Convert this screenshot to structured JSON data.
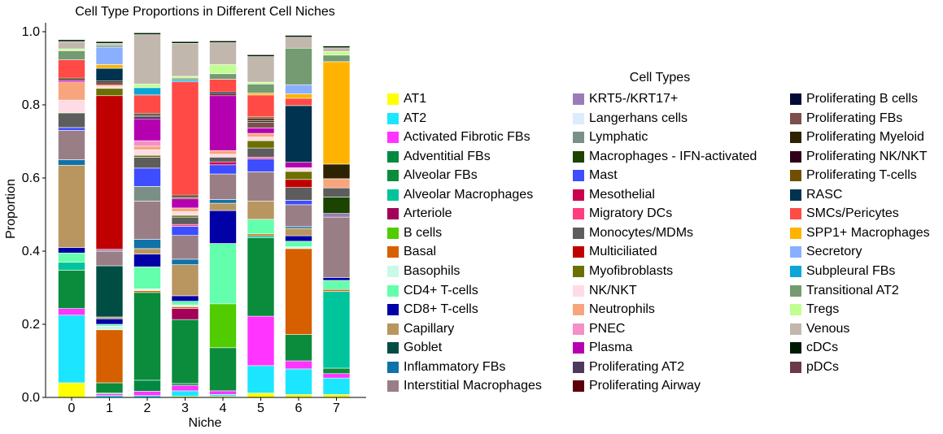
{
  "chart_data": {
    "type": "bar",
    "stacked": true,
    "title": "Cell Type Proportions in Different Cell Niches",
    "xlabel": "Niche",
    "ylabel": "Proportion",
    "ylim": [
      0,
      1.02
    ],
    "yticks": [
      "0.0",
      "0.2",
      "0.4",
      "0.6",
      "0.8",
      "1.0"
    ],
    "categories": [
      "0",
      "1",
      "2",
      "3",
      "4",
      "5",
      "6",
      "7"
    ],
    "legend_title": "Cell Types",
    "legend_placement": "right",
    "grid": false,
    "series": [
      {
        "name": "AT1",
        "color": "#ffff00",
        "values": [
          0.04,
          0.0,
          0.0,
          0.003,
          0.003,
          0.012,
          0.008,
          0.008
        ]
      },
      {
        "name": "AT2",
        "color": "#1ce6ff",
        "values": [
          0.185,
          0.005,
          0.005,
          0.015,
          0.005,
          0.075,
          0.07,
          0.045
        ]
      },
      {
        "name": "Activated Fibrotic FBs",
        "color": "#ff34ff",
        "values": [
          0.018,
          0.005,
          0.012,
          0.015,
          0.01,
          0.135,
          0.022,
          0.012
        ]
      },
      {
        "name": "Adventitial FBs",
        "color": "#008941",
        "values": [
          0.0,
          0.002,
          0.03,
          0.005,
          0.0,
          0.0,
          0.0,
          0.0
        ]
      },
      {
        "name": "Alveolar FBs",
        "color": "#0a8c3c",
        "values": [
          0.105,
          0.028,
          0.24,
          0.175,
          0.118,
          0.215,
          0.072,
          0.015
        ]
      },
      {
        "name": "Alveolar Macrophages",
        "color": "#00c49b",
        "values": [
          0.022,
          0.0,
          0.0,
          0.0,
          0.0,
          0.005,
          0.0,
          0.21
        ]
      },
      {
        "name": "Arteriole",
        "color": "#a30059",
        "values": [
          0.0,
          0.0,
          0.0,
          0.03,
          0.0,
          0.0,
          0.0,
          0.0
        ]
      },
      {
        "name": "B cells",
        "color": "#50cc00",
        "values": [
          0.0,
          0.0,
          0.0,
          0.0,
          0.12,
          0.0,
          0.0,
          0.0
        ]
      },
      {
        "name": "Basal",
        "color": "#d66000",
        "values": [
          0.0,
          0.145,
          0.005,
          0.005,
          0.0,
          0.005,
          0.235,
          0.005
        ]
      },
      {
        "name": "Basophils",
        "color": "#c8fae6",
        "values": [
          0.0,
          0.01,
          0.005,
          0.005,
          0.0,
          0.0,
          0.005,
          0.0
        ]
      },
      {
        "name": "CD4+ T-cells",
        "color": "#63ffac",
        "values": [
          0.025,
          0.005,
          0.06,
          0.01,
          0.165,
          0.04,
          0.015,
          0.025
        ]
      },
      {
        "name": "CD8+ T-cells",
        "color": "#0000a6",
        "values": [
          0.015,
          0.015,
          0.035,
          0.015,
          0.09,
          0.0,
          0.015,
          0.008
        ]
      },
      {
        "name": "Capillary",
        "color": "#b99660",
        "values": [
          0.225,
          0.005,
          0.015,
          0.085,
          0.02,
          0.05,
          0.02,
          0.0
        ]
      },
      {
        "name": "Goblet",
        "color": "#004d43",
        "values": [
          0.0,
          0.14,
          0.0,
          0.0,
          0.0,
          0.0,
          0.0,
          0.0
        ]
      },
      {
        "name": "Inflammatory FBs",
        "color": "#0f72a8",
        "values": [
          0.015,
          0.0,
          0.025,
          0.015,
          0.01,
          0.0,
          0.005,
          0.0
        ]
      },
      {
        "name": "Interstitial Macrophages",
        "color": "#9a7e85",
        "values": [
          0.08,
          0.04,
          0.105,
          0.065,
          0.07,
          0.08,
          0.06,
          0.165
        ]
      },
      {
        "name": "KRT5-/KRT17+",
        "color": "#9c7cb8",
        "values": [
          0.0,
          0.005,
          0.0,
          0.0,
          0.0,
          0.0,
          0.0,
          0.01
        ]
      },
      {
        "name": "Langerhans cells",
        "color": "#dcecfc",
        "values": [
          0.0,
          0.0,
          0.0,
          0.0,
          0.0,
          0.0,
          0.0,
          0.0
        ]
      },
      {
        "name": "Lymphatic",
        "color": "#7a9087",
        "values": [
          0.0,
          0.0,
          0.04,
          0.0,
          0.0,
          0.0,
          0.0,
          0.0
        ]
      },
      {
        "name": "Macrophages - IFN-activated",
        "color": "#1b4400",
        "values": [
          0.0,
          0.0,
          0.0,
          0.0,
          0.0,
          0.0,
          0.0,
          0.045
        ]
      },
      {
        "name": "Mast",
        "color": "#3d4dff",
        "values": [
          0.008,
          0.0,
          0.05,
          0.025,
          0.025,
          0.035,
          0.012,
          0.0
        ]
      },
      {
        "name": "Mesothelial",
        "color": "#ca0050",
        "values": [
          0.0,
          0.0,
          0.0,
          0.0,
          0.008,
          0.0,
          0.0,
          0.0
        ]
      },
      {
        "name": "Migratory DCs",
        "color": "#ff3d7f",
        "values": [
          0.0,
          0.0,
          0.0,
          0.005,
          0.0,
          0.005,
          0.0,
          0.0
        ]
      },
      {
        "name": "Monocytes/MDMs",
        "color": "#5d5d5d",
        "values": [
          0.04,
          0.0,
          0.03,
          0.02,
          0.013,
          0.025,
          0.035,
          0.025
        ]
      },
      {
        "name": "Multiciliated",
        "color": "#c00000",
        "values": [
          0.0,
          0.42,
          0.0,
          0.0,
          0.0,
          0.0,
          0.022,
          0.0
        ]
      },
      {
        "name": "Myofibroblasts",
        "color": "#6b7000",
        "values": [
          0.0,
          0.02,
          0.005,
          0.005,
          0.0,
          0.02,
          0.022,
          0.0
        ]
      },
      {
        "name": "NK/NKT",
        "color": "#ffdbe5",
        "values": [
          0.035,
          0.005,
          0.015,
          0.01,
          0.008,
          0.01,
          0.01,
          0.0
        ]
      },
      {
        "name": "Neutrophils",
        "color": "#f8a57e",
        "values": [
          0.05,
          0.005,
          0.01,
          0.01,
          0.01,
          0.01,
          0.0,
          0.025
        ]
      },
      {
        "name": "PNEC",
        "color": "#f48fc8",
        "values": [
          0.0,
          0.0,
          0.015,
          0.0,
          0.0,
          0.0,
          0.0,
          0.0
        ]
      },
      {
        "name": "Plasma",
        "color": "#b500b0",
        "values": [
          0.005,
          0.0,
          0.06,
          0.025,
          0.15,
          0.015,
          0.015,
          0.0
        ]
      },
      {
        "name": "Proliferating AT2",
        "color": "#4c3a5c",
        "values": [
          0.0,
          0.0,
          0.0,
          0.0,
          0.0,
          0.0,
          0.0,
          0.0
        ]
      },
      {
        "name": "Proliferating Airway",
        "color": "#5a0007",
        "values": [
          0.0,
          0.005,
          0.0,
          0.0,
          0.005,
          0.0,
          0.0,
          0.0
        ]
      },
      {
        "name": "Proliferating B cells",
        "color": "#000b36",
        "values": [
          0.0,
          0.0,
          0.005,
          0.0,
          0.005,
          0.0,
          0.0,
          0.0
        ]
      },
      {
        "name": "Proliferating FBs",
        "color": "#7b4f4b",
        "values": [
          0.0,
          0.0,
          0.005,
          0.005,
          0.0,
          0.015,
          0.0,
          0.0
        ]
      },
      {
        "name": "Proliferating Myeloid",
        "color": "#2d2300",
        "values": [
          0.005,
          0.005,
          0.005,
          0.005,
          0.0,
          0.005,
          0.0,
          0.04
        ]
      },
      {
        "name": "Proliferating NK/NKT",
        "color": "#300018",
        "values": [
          0.0,
          0.0,
          0.0,
          0.0,
          0.0,
          0.005,
          0.0,
          0.0
        ]
      },
      {
        "name": "Proliferating T-cells",
        "color": "#734d00",
        "values": [
          0.0,
          0.0,
          0.0,
          0.0,
          0.0,
          0.005,
          0.0,
          0.0
        ]
      },
      {
        "name": "RASC",
        "color": "#00334f",
        "values": [
          0.0,
          0.035,
          0.0,
          0.0,
          0.0,
          0.0,
          0.155,
          0.0
        ]
      },
      {
        "name": "SMCs/Pericytes",
        "color": "#ff4a46",
        "values": [
          0.05,
          0.0,
          0.05,
          0.31,
          0.035,
          0.06,
          0.02,
          0.0
        ]
      },
      {
        "name": "SPP1+ Macrophages",
        "color": "#ffb300",
        "values": [
          0.0,
          0.01,
          0.0,
          0.0,
          0.0,
          0.005,
          0.012,
          0.28
        ]
      },
      {
        "name": "Secretory",
        "color": "#8aafff",
        "values": [
          0.0,
          0.048,
          0.0,
          0.0,
          0.0,
          0.0,
          0.025,
          0.0
        ]
      },
      {
        "name": "Subpleural FBs",
        "color": "#0aa6d8",
        "values": [
          0.0,
          0.0,
          0.02,
          0.005,
          0.0,
          0.0,
          0.0,
          0.0
        ]
      },
      {
        "name": "Transitional AT2",
        "color": "#749b71",
        "values": [
          0.025,
          0.005,
          0.0,
          0.005,
          0.015,
          0.025,
          0.1,
          0.018
        ]
      },
      {
        "name": "Tregs",
        "color": "#c0ff90",
        "values": [
          0.005,
          0.0,
          0.01,
          0.005,
          0.025,
          0.005,
          0.0,
          0.01
        ]
      },
      {
        "name": "Venous",
        "color": "#c2b7ad",
        "values": [
          0.02,
          0.005,
          0.135,
          0.09,
          0.06,
          0.07,
          0.03,
          0.01
        ]
      },
      {
        "name": "cDCs",
        "color": "#001a00",
        "values": [
          0.005,
          0.005,
          0.005,
          0.005,
          0.005,
          0.005,
          0.005,
          0.005
        ]
      },
      {
        "name": "pDCs",
        "color": "#6b3a49",
        "values": [
          0.0,
          0.0,
          0.0,
          0.0,
          0.0,
          0.0,
          0.0,
          0.0
        ]
      }
    ]
  }
}
